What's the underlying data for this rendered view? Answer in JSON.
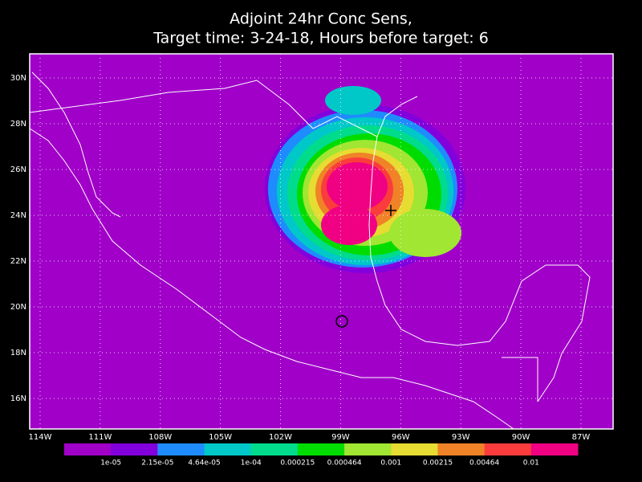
{
  "title": [
    "Adjoint 24hr Conc Sens,",
    "Target time: 3-24-18, Hours before target: 6"
  ],
  "map": {
    "lat_ticks": [
      {
        "value": 30,
        "label": "30N"
      },
      {
        "value": 28,
        "label": "28N"
      },
      {
        "value": 26,
        "label": "26N"
      },
      {
        "value": 24,
        "label": "24N"
      },
      {
        "value": 22,
        "label": "22N"
      },
      {
        "value": 20,
        "label": "20N"
      },
      {
        "value": 18,
        "label": "18N"
      },
      {
        "value": 16,
        "label": "16N"
      }
    ],
    "lon_ticks": [
      {
        "value": 114,
        "label": "114W"
      },
      {
        "value": 111,
        "label": "111W"
      },
      {
        "value": 108,
        "label": "108W"
      },
      {
        "value": 105,
        "label": "105W"
      },
      {
        "value": 102,
        "label": "102W"
      },
      {
        "value": 99,
        "label": "99W"
      },
      {
        "value": 96,
        "label": "96W"
      },
      {
        "value": 93,
        "label": "93W"
      },
      {
        "value": 90,
        "label": "90W"
      },
      {
        "value": 87,
        "label": "87W"
      }
    ]
  },
  "colorbar": {
    "colors": [
      "#a000c8",
      "#8200dc",
      "#1e8cff",
      "#00c8c8",
      "#00dc8c",
      "#00dc00",
      "#a0e632",
      "#e6dc32",
      "#f08228",
      "#fa3c3c",
      "#f00082"
    ],
    "labels": [
      "1e-05",
      "2.15e-05",
      "4.64e-05",
      "1e-04",
      "0.000215",
      "0.000464",
      "0.001",
      "0.00215",
      "0.00464",
      "0.01"
    ]
  }
}
